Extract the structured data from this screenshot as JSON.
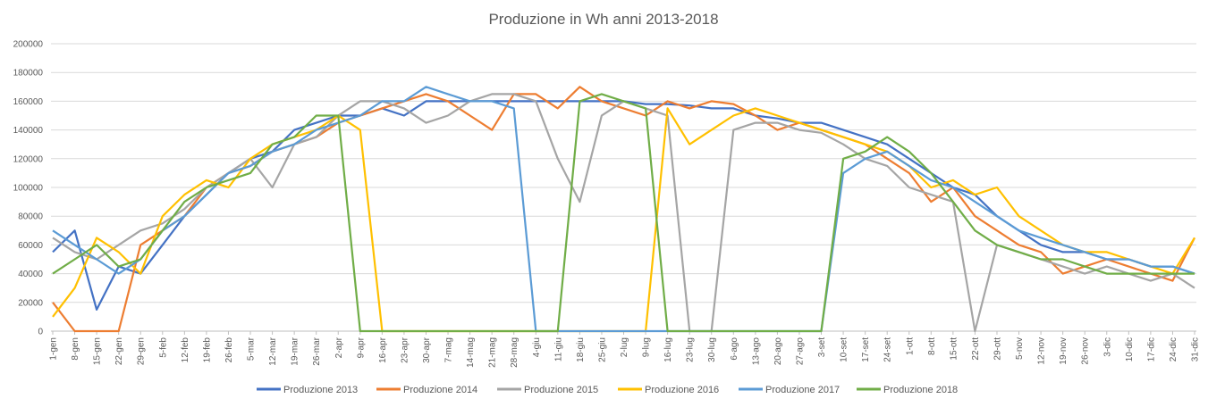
{
  "chart_data": {
    "type": "line",
    "title": "Produzione in Wh anni 2013-2018",
    "xlabel": "",
    "ylabel": "",
    "ylim": [
      0,
      200000
    ],
    "yticks": [
      "0",
      "20000",
      "40000",
      "60000",
      "80000",
      "100000",
      "120000",
      "140000",
      "160000",
      "180000",
      "200000"
    ],
    "categories": [
      "1-gen",
      "8-gen",
      "15-gen",
      "22-gen",
      "29-gen",
      "5-feb",
      "12-feb",
      "19-feb",
      "26-feb",
      "5-mar",
      "12-mar",
      "19-mar",
      "26-mar",
      "2-apr",
      "9-apr",
      "16-apr",
      "23-apr",
      "30-apr",
      "7-mag",
      "14-mag",
      "21-mag",
      "28-mag",
      "4-giu",
      "11-giu",
      "18-giu",
      "25-giu",
      "2-lug",
      "9-lug",
      "16-lug",
      "23-lug",
      "30-lug",
      "6-ago",
      "13-ago",
      "20-ago",
      "27-ago",
      "3-set",
      "10-set",
      "17-set",
      "24-set",
      "1-ott",
      "8-ott",
      "15-ott",
      "22-ott",
      "29-ott",
      "5-nov",
      "12-nov",
      "19-nov",
      "26-nov",
      "3-dic",
      "10-dic",
      "17-dic",
      "24-dic",
      "31-dic"
    ],
    "grid": true,
    "legend_position": "bottom",
    "series": [
      {
        "name": "Produzione 2013",
        "color": "#4472C4",
        "values": [
          55000,
          70000,
          15000,
          45000,
          40000,
          60000,
          80000,
          95000,
          110000,
          120000,
          125000,
          140000,
          145000,
          150000,
          150000,
          155000,
          150000,
          160000,
          160000,
          160000,
          160000,
          160000,
          160000,
          160000,
          160000,
          160000,
          160000,
          158000,
          158000,
          157000,
          155000,
          155000,
          150000,
          148000,
          145000,
          145000,
          140000,
          135000,
          130000,
          120000,
          110000,
          100000,
          95000,
          80000,
          70000,
          60000,
          55000,
          55000,
          50000,
          50000,
          45000,
          45000,
          40000
        ]
      },
      {
        "name": "Produzione 2014",
        "color": "#ED7D31",
        "values": [
          20000,
          0,
          0,
          0,
          60000,
          70000,
          80000,
          100000,
          110000,
          115000,
          125000,
          130000,
          135000,
          145000,
          150000,
          155000,
          160000,
          165000,
          160000,
          150000,
          140000,
          165000,
          165000,
          155000,
          170000,
          160000,
          155000,
          150000,
          160000,
          155000,
          160000,
          158000,
          150000,
          140000,
          145000,
          140000,
          135000,
          130000,
          120000,
          110000,
          90000,
          100000,
          80000,
          70000,
          60000,
          55000,
          40000,
          45000,
          50000,
          45000,
          40000,
          35000,
          65000
        ]
      },
      {
        "name": "Produzione 2015",
        "color": "#A5A5A5",
        "values": [
          65000,
          55000,
          50000,
          60000,
          70000,
          75000,
          85000,
          100000,
          110000,
          120000,
          100000,
          130000,
          135000,
          150000,
          160000,
          160000,
          155000,
          145000,
          150000,
          160000,
          165000,
          165000,
          160000,
          120000,
          90000,
          150000,
          160000,
          155000,
          150000,
          0,
          0,
          140000,
          145000,
          145000,
          140000,
          138000,
          130000,
          120000,
          115000,
          100000,
          95000,
          90000,
          0,
          60000,
          55000,
          50000,
          45000,
          40000,
          45000,
          40000,
          35000,
          40000,
          30000
        ]
      },
      {
        "name": "Produzione 2016",
        "color": "#FFC000",
        "values": [
          10000,
          30000,
          65000,
          55000,
          40000,
          80000,
          95000,
          105000,
          100000,
          120000,
          130000,
          135000,
          140000,
          150000,
          140000,
          0,
          0,
          0,
          0,
          0,
          0,
          0,
          0,
          0,
          0,
          0,
          0,
          0,
          155000,
          130000,
          140000,
          150000,
          155000,
          150000,
          145000,
          140000,
          135000,
          130000,
          125000,
          115000,
          100000,
          105000,
          95000,
          100000,
          80000,
          70000,
          60000,
          55000,
          55000,
          50000,
          45000,
          40000,
          65000
        ]
      },
      {
        "name": "Produzione 2017",
        "color": "#5B9BD5",
        "values": [
          70000,
          60000,
          50000,
          40000,
          50000,
          70000,
          80000,
          95000,
          110000,
          115000,
          125000,
          130000,
          140000,
          145000,
          150000,
          160000,
          160000,
          170000,
          165000,
          160000,
          160000,
          155000,
          0,
          0,
          0,
          0,
          0,
          0,
          0,
          0,
          0,
          0,
          0,
          0,
          0,
          0,
          110000,
          120000,
          125000,
          115000,
          105000,
          100000,
          90000,
          80000,
          70000,
          65000,
          60000,
          55000,
          50000,
          50000,
          45000,
          45000,
          40000
        ]
      },
      {
        "name": "Produzione 2018",
        "color": "#70AD47",
        "values": [
          40000,
          50000,
          60000,
          45000,
          50000,
          70000,
          90000,
          100000,
          105000,
          110000,
          130000,
          135000,
          150000,
          150000,
          0,
          0,
          0,
          0,
          0,
          0,
          0,
          0,
          0,
          0,
          160000,
          165000,
          160000,
          155000,
          0,
          0,
          0,
          0,
          0,
          0,
          0,
          0,
          120000,
          125000,
          135000,
          125000,
          110000,
          90000,
          70000,
          60000,
          55000,
          50000,
          50000,
          45000,
          40000,
          40000,
          40000,
          40000,
          40000
        ]
      }
    ]
  }
}
